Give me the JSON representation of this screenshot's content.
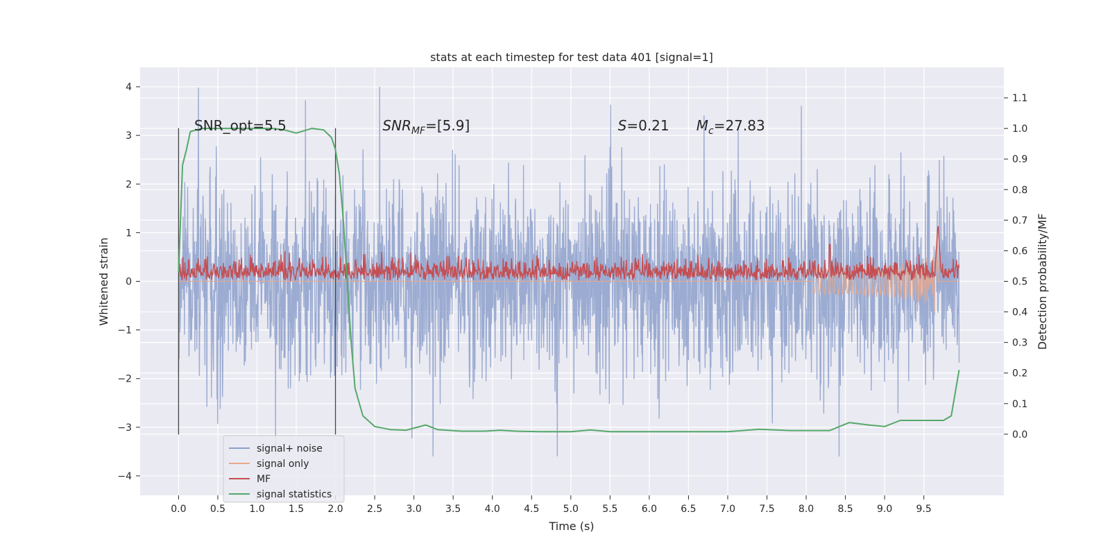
{
  "chart_data": {
    "type": "line",
    "title": "stats at each timestep for test data 401 [signal=1]",
    "xlabel": "Time (s)",
    "ylabel_left": "Whitened strain",
    "ylabel_right": "Detection probability/MF",
    "xlim": [
      -0.49,
      10.52
    ],
    "ylim_left": [
      -4.4,
      4.4
    ],
    "ylim_right": [
      -0.2,
      1.2
    ],
    "x_ticks": [
      "0.0",
      "0.5",
      "1.0",
      "1.5",
      "2.0",
      "2.5",
      "3.0",
      "3.5",
      "4.0",
      "4.5",
      "5.0",
      "5.5",
      "6.0",
      "6.5",
      "7.0",
      "7.5",
      "8.0",
      "8.5",
      "9.0",
      "9.5"
    ],
    "y_ticks_left": [
      "−4",
      "−3",
      "−2",
      "−1",
      "0",
      "1",
      "2",
      "3",
      "4"
    ],
    "y_ticks_right": [
      "0.0",
      "0.1",
      "0.2",
      "0.3",
      "0.4",
      "0.5",
      "0.6",
      "0.7",
      "0.8",
      "0.9",
      "1.0",
      "1.1"
    ],
    "grid": true,
    "legend_position": "lower-left",
    "series": [
      {
        "name": "signal+ noise",
        "axis": "left",
        "color": "#8da0cb",
        "x_range": [
          0,
          9.95
        ],
        "approx_envelope": [
          -3.3,
          3.3
        ]
      },
      {
        "name": "signal only",
        "axis": "left",
        "color": "#e8a78a",
        "chirp_end": 9.68,
        "chirp_peak_amplitude": 1.1
      },
      {
        "name": "MF",
        "axis": "right",
        "color": "#c44e52",
        "approx_level": [
          0.5,
          0.57
        ],
        "peak_at": 9.68,
        "peak_value": 0.69
      },
      {
        "name": "signal statistics",
        "axis": "right",
        "color": "#55a868",
        "x": [
          0.0,
          0.05,
          0.1,
          0.15,
          0.3,
          0.6,
          0.9,
          1.2,
          1.35,
          1.5,
          1.7,
          1.85,
          1.95,
          2.0,
          2.05,
          2.1,
          2.15,
          2.2,
          2.25,
          2.35,
          2.5,
          2.7,
          2.9,
          3.15,
          3.3,
          3.6,
          3.9,
          4.1,
          4.3,
          4.6,
          5.0,
          5.25,
          5.5,
          6.0,
          6.5,
          7.0,
          7.4,
          7.8,
          8.1,
          8.3,
          8.55,
          8.8,
          9.0,
          9.2,
          9.4,
          9.6,
          9.75,
          9.85,
          9.95
        ],
        "y": [
          0.53,
          0.88,
          0.93,
          0.99,
          1.0,
          1.0,
          1.0,
          1.0,
          0.995,
          0.985,
          1.0,
          0.995,
          0.97,
          0.93,
          0.85,
          0.7,
          0.5,
          0.3,
          0.15,
          0.06,
          0.025,
          0.015,
          0.013,
          0.03,
          0.015,
          0.01,
          0.01,
          0.013,
          0.01,
          0.008,
          0.008,
          0.014,
          0.008,
          0.008,
          0.008,
          0.008,
          0.016,
          0.012,
          0.012,
          0.012,
          0.038,
          0.03,
          0.025,
          0.045,
          0.045,
          0.045,
          0.045,
          0.06,
          0.21
        ]
      }
    ],
    "vertical_lines": [
      0.0,
      2.0
    ],
    "annotations": [
      {
        "text": "SNR_opt=5.5",
        "x": 0.2
      },
      {
        "text": "SNR",
        "sub": "MF",
        "suffix": "=[5.9]",
        "x": 2.6
      },
      {
        "text": "S",
        "suffix": "=0.21",
        "x": 5.6
      },
      {
        "text": "M",
        "sub": "c",
        "suffix": "=27.83",
        "x": 6.6
      }
    ],
    "legend": [
      {
        "label": "signal+ noise",
        "color": "#8da0cb"
      },
      {
        "label": "signal only",
        "color": "#e8a78a"
      },
      {
        "label": "MF",
        "color": "#c44e52"
      },
      {
        "label": "signal statistics",
        "color": "#55a868"
      }
    ]
  }
}
